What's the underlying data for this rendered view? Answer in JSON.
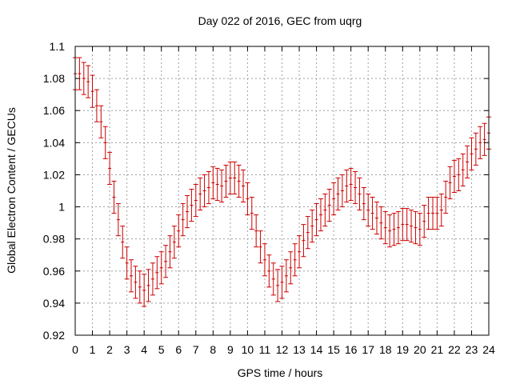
{
  "chart_data": {
    "type": "scatter",
    "title": "Day 022 of 2016, GEC from uqrg",
    "xlabel": "GPS time / hours",
    "ylabel": "Global Electron Content / GECUs",
    "xlim": [
      0,
      24
    ],
    "ylim": [
      0.92,
      1.1
    ],
    "grid": true,
    "error_bars": true,
    "colors": {
      "series": "#cc0000",
      "grid": "#a0a0a0",
      "axis": "#000000"
    },
    "x_ticks": [
      "0",
      "1",
      "2",
      "3",
      "4",
      "5",
      "6",
      "7",
      "8",
      "9",
      "10",
      "11",
      "12",
      "13",
      "14",
      "15",
      "16",
      "17",
      "18",
      "19",
      "20",
      "21",
      "22",
      "23",
      "24"
    ],
    "y_ticks": [
      "0.92",
      "0.94",
      "0.96",
      "0.98",
      "1",
      "1.02",
      "1.04",
      "1.06",
      "1.08",
      "1.1"
    ],
    "series": [
      {
        "x": [
          0,
          0.25,
          0.5,
          0.75,
          1,
          1.25,
          1.5,
          1.75,
          2,
          2.25,
          2.5,
          2.75,
          3,
          3.25,
          3.5,
          3.75,
          4,
          4.25,
          4.5,
          4.75,
          5,
          5.25,
          5.5,
          5.75,
          6,
          6.25,
          6.5,
          6.75,
          7,
          7.25,
          7.5,
          7.75,
          8,
          8.25,
          8.5,
          8.75,
          9,
          9.25,
          9.5,
          9.75,
          10,
          10.25,
          10.5,
          10.75,
          11,
          11.25,
          11.5,
          11.75,
          12,
          12.25,
          12.5,
          12.75,
          13,
          13.25,
          13.5,
          13.75,
          14,
          14.25,
          14.5,
          14.75,
          15,
          15.25,
          15.5,
          15.75,
          16,
          16.25,
          16.5,
          16.75,
          17,
          17.25,
          17.5,
          17.75,
          18,
          18.25,
          18.5,
          18.75,
          19,
          19.25,
          19.5,
          19.75,
          20,
          20.25,
          20.5,
          20.75,
          21,
          21.25,
          21.5,
          21.75,
          22,
          22.25,
          22.5,
          22.75,
          23,
          23.25,
          23.5,
          23.75,
          24
        ],
        "y": [
          1.083,
          1.083,
          1.08,
          1.078,
          1.072,
          1.063,
          1.053,
          1.04,
          1.024,
          1.006,
          0.992,
          0.978,
          0.965,
          0.957,
          0.953,
          0.95,
          0.948,
          0.951,
          0.955,
          0.959,
          0.962,
          0.966,
          0.972,
          0.978,
          0.985,
          0.992,
          0.997,
          1.001,
          1.004,
          1.008,
          1.01,
          1.012,
          1.015,
          1.014,
          1.013,
          1.016,
          1.018,
          1.018,
          1.016,
          1.013,
          1.005,
          0.996,
          0.985,
          0.975,
          0.967,
          0.96,
          0.955,
          0.951,
          0.953,
          0.957,
          0.962,
          0.967,
          0.972,
          0.979,
          0.984,
          0.988,
          0.992,
          0.995,
          0.998,
          1.001,
          1.005,
          1.008,
          1.01,
          1.013,
          1.014,
          1.012,
          1.008,
          1.002,
          0.998,
          0.996,
          0.993,
          0.99,
          0.987,
          0.985,
          0.986,
          0.987,
          0.989,
          0.989,
          0.988,
          0.987,
          0.986,
          0.991,
          0.996,
          0.996,
          0.996,
          0.998,
          1.006,
          1.015,
          1.019,
          1.02,
          1.023,
          1.028,
          1.033,
          1.036,
          1.04,
          1.042,
          1.046
        ],
        "error": 0.01
      }
    ]
  }
}
